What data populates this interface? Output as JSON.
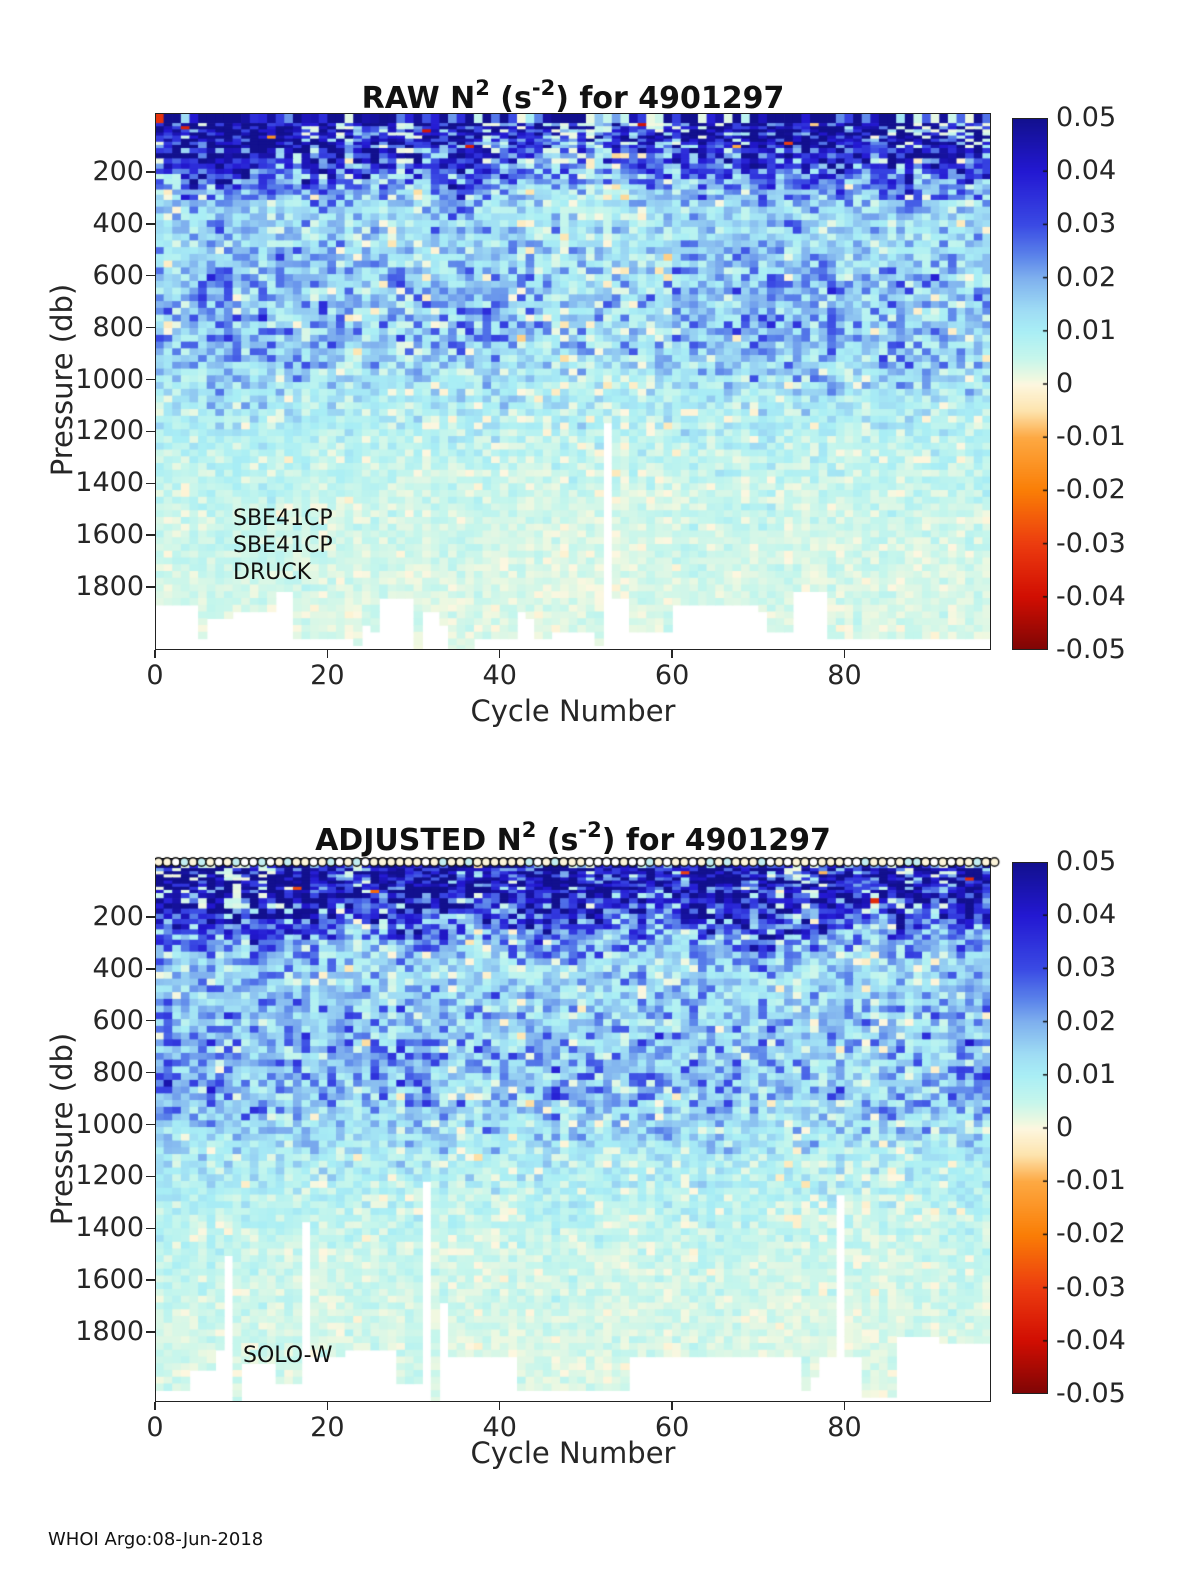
{
  "page": {
    "background": "#ffffff",
    "footer": "WHOI Argo:08-Jun-2018"
  },
  "colormap": {
    "clim": [
      -0.05,
      0.05
    ],
    "anchors": [
      [
        0.0,
        "#12108e"
      ],
      [
        0.1,
        "#2318d2"
      ],
      [
        0.2,
        "#3a4ae4"
      ],
      [
        0.26,
        "#5c85ea"
      ],
      [
        0.3,
        "#7fb0ee"
      ],
      [
        0.36,
        "#9fdcf4"
      ],
      [
        0.4,
        "#a9eef5"
      ],
      [
        0.45,
        "#c6f6ec"
      ],
      [
        0.49,
        "#f0f8e0"
      ],
      [
        0.5,
        "#fdf7e0"
      ],
      [
        0.55,
        "#fde4ae"
      ],
      [
        0.6,
        "#fda943"
      ],
      [
        0.7,
        "#fa7e06"
      ],
      [
        0.8,
        "#ec3c0f"
      ],
      [
        0.9,
        "#d10e02"
      ],
      [
        1.0,
        "#7e0505"
      ]
    ]
  },
  "marker_fill_colors": [
    "#fdf5da",
    "#ffffff",
    "#c2eef2"
  ],
  "chart_data": [
    {
      "type": "heatmap",
      "id": "raw",
      "title": {
        "pre": "RAW N",
        "sup1": "2",
        "mid": " (s",
        "sup2": "-2",
        "post": ") for 4901297"
      },
      "xlabel": "Cycle Number",
      "ylabel": "Pressure (db)",
      "x_range": [
        0,
        97
      ],
      "y_range": [
        0,
        2040
      ],
      "xticks": [
        0,
        20,
        40,
        60,
        80
      ],
      "yticks": [
        200,
        400,
        600,
        800,
        1000,
        1200,
        1400,
        1600,
        1800
      ],
      "colorbar_labels": [
        "0.05",
        "0.04",
        "0.03",
        "0.02",
        "0.01",
        "0",
        "-0.01",
        "-0.02",
        "-0.03",
        "-0.04",
        "-0.05"
      ],
      "annotations": [
        {
          "text": "SBE41CP"
        },
        {
          "text": "SBE41CP"
        },
        {
          "text": "DRUCK"
        }
      ],
      "surface_markers": false,
      "seed": 811297,
      "n2_profile": [
        {
          "p": 0,
          "mean": 0.046,
          "sd": 0.018
        },
        {
          "p": 80,
          "mean": 0.044,
          "sd": 0.014
        },
        {
          "p": 160,
          "mean": 0.036,
          "sd": 0.013
        },
        {
          "p": 240,
          "mean": 0.024,
          "sd": 0.01
        },
        {
          "p": 340,
          "mean": 0.013,
          "sd": 0.006
        },
        {
          "p": 480,
          "mean": 0.014,
          "sd": 0.006
        },
        {
          "p": 620,
          "mean": 0.017,
          "sd": 0.0075
        },
        {
          "p": 800,
          "mean": 0.018,
          "sd": 0.0075
        },
        {
          "p": 950,
          "mean": 0.014,
          "sd": 0.006
        },
        {
          "p": 1100,
          "mean": 0.0095,
          "sd": 0.0045
        },
        {
          "p": 1300,
          "mean": 0.0062,
          "sd": 0.0028
        },
        {
          "p": 1500,
          "mean": 0.0045,
          "sd": 0.002
        },
        {
          "p": 1750,
          "mean": 0.0035,
          "sd": 0.0016
        },
        {
          "p": 2080,
          "mean": 0.003,
          "sd": 0.0015
        }
      ],
      "data_bottom_depth_db": 1870
    },
    {
      "type": "heatmap",
      "id": "adjusted",
      "title": {
        "pre": "ADJUSTED N",
        "sup1": "2",
        "mid": " (s",
        "sup2": "-2",
        "post": ") for 4901297"
      },
      "xlabel": "Cycle Number",
      "ylabel": "Pressure (db)",
      "x_range": [
        0,
        97
      ],
      "y_range": [
        0,
        2070
      ],
      "xticks": [
        0,
        20,
        40,
        60,
        80
      ],
      "yticks": [
        200,
        400,
        600,
        800,
        1000,
        1200,
        1400,
        1600,
        1800
      ],
      "colorbar_labels": [
        "0.05",
        "0.04",
        "0.03",
        "0.02",
        "0.01",
        "0",
        "-0.01",
        "-0.02",
        "-0.03",
        "-0.04",
        "-0.05"
      ],
      "annotations": [
        {
          "text": "SOLO-W"
        }
      ],
      "surface_markers": true,
      "seed": 4901297,
      "n2_profile": [
        {
          "p": 0,
          "mean": 0.047,
          "sd": 0.017
        },
        {
          "p": 90,
          "mean": 0.045,
          "sd": 0.014
        },
        {
          "p": 180,
          "mean": 0.037,
          "sd": 0.013
        },
        {
          "p": 260,
          "mean": 0.024,
          "sd": 0.01
        },
        {
          "p": 360,
          "mean": 0.014,
          "sd": 0.0065
        },
        {
          "p": 500,
          "mean": 0.015,
          "sd": 0.0065
        },
        {
          "p": 650,
          "mean": 0.018,
          "sd": 0.0078
        },
        {
          "p": 850,
          "mean": 0.019,
          "sd": 0.0078
        },
        {
          "p": 1000,
          "mean": 0.014,
          "sd": 0.006
        },
        {
          "p": 1150,
          "mean": 0.0095,
          "sd": 0.0045
        },
        {
          "p": 1350,
          "mean": 0.0062,
          "sd": 0.0028
        },
        {
          "p": 1550,
          "mean": 0.0045,
          "sd": 0.002
        },
        {
          "p": 1800,
          "mean": 0.0035,
          "sd": 0.0016
        },
        {
          "p": 2080,
          "mean": 0.003,
          "sd": 0.0015
        }
      ],
      "data_bottom_depth_db": 1870
    }
  ]
}
